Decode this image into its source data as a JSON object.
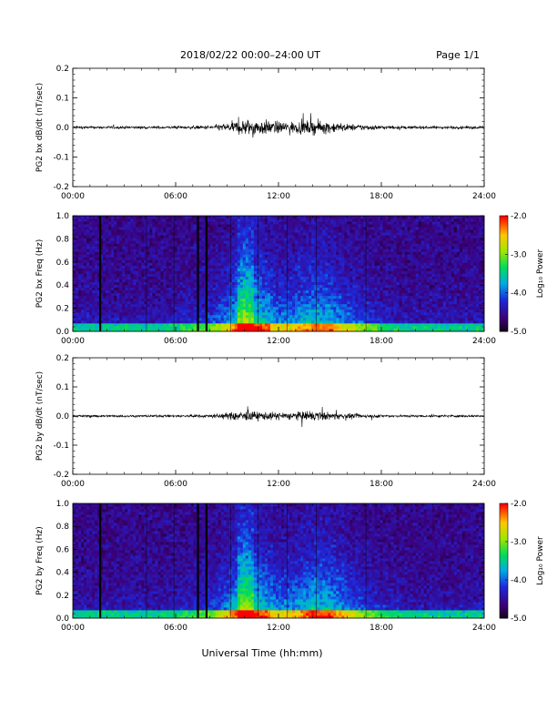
{
  "header": {
    "title": "2018/02/22  00:00–24:00 UT",
    "page": "Page 1/1"
  },
  "x_axis_label": "Universal Time (hh:mm)",
  "colors": {
    "spectrogram_low": "#1a0033",
    "spectrogram_high": "#ff0000",
    "trace": "#000000"
  },
  "chart_data": [
    {
      "type": "line",
      "ylabel": "PG2 bx dB/dt (nT/sec)",
      "ylim": [
        -0.2,
        0.2
      ],
      "yticks": [
        "0.2",
        "0.1",
        "0.0",
        "-0.1",
        "-0.2"
      ],
      "xlim": [
        "00:00",
        "24:00"
      ],
      "xticks": [
        "00:00",
        "06:00",
        "12:00",
        "18:00",
        "24:00"
      ],
      "x": [
        "00:00",
        "01:00",
        "02:00",
        "03:00",
        "04:00",
        "05:00",
        "06:00",
        "07:00",
        "08:00",
        "09:00",
        "10:00",
        "11:00",
        "12:00",
        "13:00",
        "14:00",
        "15:00",
        "16:00",
        "17:00",
        "18:00",
        "19:00",
        "20:00",
        "21:00",
        "22:00",
        "23:00",
        "24:00"
      ],
      "series": [
        {
          "envelope": [
            0.008,
            0.008,
            0.008,
            0.008,
            0.008,
            0.008,
            0.008,
            0.009,
            0.012,
            0.025,
            0.05,
            0.045,
            0.035,
            0.035,
            0.04,
            0.035,
            0.02,
            0.018,
            0.012,
            0.009,
            0.008,
            0.008,
            0.008,
            0.008,
            0.008
          ]
        }
      ]
    },
    {
      "type": "heatmap",
      "ylabel": "PG2 bx Freq (Hz)",
      "ylim": [
        0.0,
        1.0
      ],
      "yticks": [
        "1.0",
        "0.8",
        "0.6",
        "0.4",
        "0.2",
        "0.0"
      ],
      "xlim": [
        "00:00",
        "24:00"
      ],
      "xticks": [
        "00:00",
        "06:00",
        "12:00",
        "18:00",
        "24:00"
      ],
      "colorbar": {
        "label": "Log₁₀ Power",
        "range": [
          -5.0,
          -2.0
        ],
        "ticks": [
          "-2.0",
          "-3.0",
          "-4.0",
          "-5.0"
        ]
      },
      "data_gaps_hours": [
        1.6,
        7.3,
        7.8
      ],
      "cell_borders_hours": [
        4.3,
        5.9,
        9.2,
        10.8,
        12.5,
        14.2,
        17.1
      ],
      "activity_hours": [
        0.2,
        0.2,
        0.2,
        0.2,
        0.2,
        0.2,
        0.25,
        0.3,
        0.4,
        0.6,
        1.0,
        0.85,
        0.6,
        0.65,
        0.8,
        0.75,
        0.55,
        0.45,
        0.3,
        0.25,
        0.2,
        0.2,
        0.2,
        0.2,
        0.2
      ]
    },
    {
      "type": "line",
      "ylabel": "PG2 by dB/dt (nT/sec)",
      "ylim": [
        -0.2,
        0.2
      ],
      "yticks": [
        "0.2",
        "0.1",
        "0.0",
        "-0.1",
        "-0.2"
      ],
      "xlim": [
        "00:00",
        "24:00"
      ],
      "xticks": [
        "00:00",
        "06:00",
        "12:00",
        "18:00",
        "24:00"
      ],
      "x": [
        "00:00",
        "01:00",
        "02:00",
        "03:00",
        "04:00",
        "05:00",
        "06:00",
        "07:00",
        "08:00",
        "09:00",
        "10:00",
        "11:00",
        "12:00",
        "13:00",
        "14:00",
        "15:00",
        "16:00",
        "17:00",
        "18:00",
        "19:00",
        "20:00",
        "21:00",
        "22:00",
        "23:00",
        "24:00"
      ],
      "series": [
        {
          "envelope": [
            0.007,
            0.007,
            0.007,
            0.007,
            0.007,
            0.007,
            0.007,
            0.008,
            0.01,
            0.02,
            0.03,
            0.025,
            0.022,
            0.025,
            0.03,
            0.022,
            0.015,
            0.012,
            0.009,
            0.007,
            0.007,
            0.007,
            0.007,
            0.007,
            0.007
          ]
        }
      ]
    },
    {
      "type": "heatmap",
      "ylabel": "PG2 by Freq (Hz)",
      "ylim": [
        0.0,
        1.0
      ],
      "yticks": [
        "1.0",
        "0.8",
        "0.6",
        "0.4",
        "0.2",
        "0.0"
      ],
      "xlim": [
        "00:00",
        "24:00"
      ],
      "xticks": [
        "00:00",
        "06:00",
        "12:00",
        "18:00",
        "24:00"
      ],
      "colorbar": {
        "label": "Log₁₀ Power",
        "range": [
          -5.0,
          -2.0
        ],
        "ticks": [
          "-2.0",
          "-3.0",
          "-4.0",
          "-5.0"
        ]
      },
      "data_gaps_hours": [
        1.6,
        7.3,
        7.8
      ],
      "cell_borders_hours": [
        4.3,
        5.9,
        9.2,
        10.8,
        12.5,
        14.2,
        17.1
      ],
      "activity_hours": [
        0.2,
        0.2,
        0.2,
        0.2,
        0.2,
        0.2,
        0.25,
        0.3,
        0.4,
        0.6,
        1.0,
        0.85,
        0.6,
        0.65,
        0.85,
        0.8,
        0.6,
        0.45,
        0.3,
        0.25,
        0.2,
        0.2,
        0.2,
        0.2,
        0.2
      ]
    }
  ]
}
